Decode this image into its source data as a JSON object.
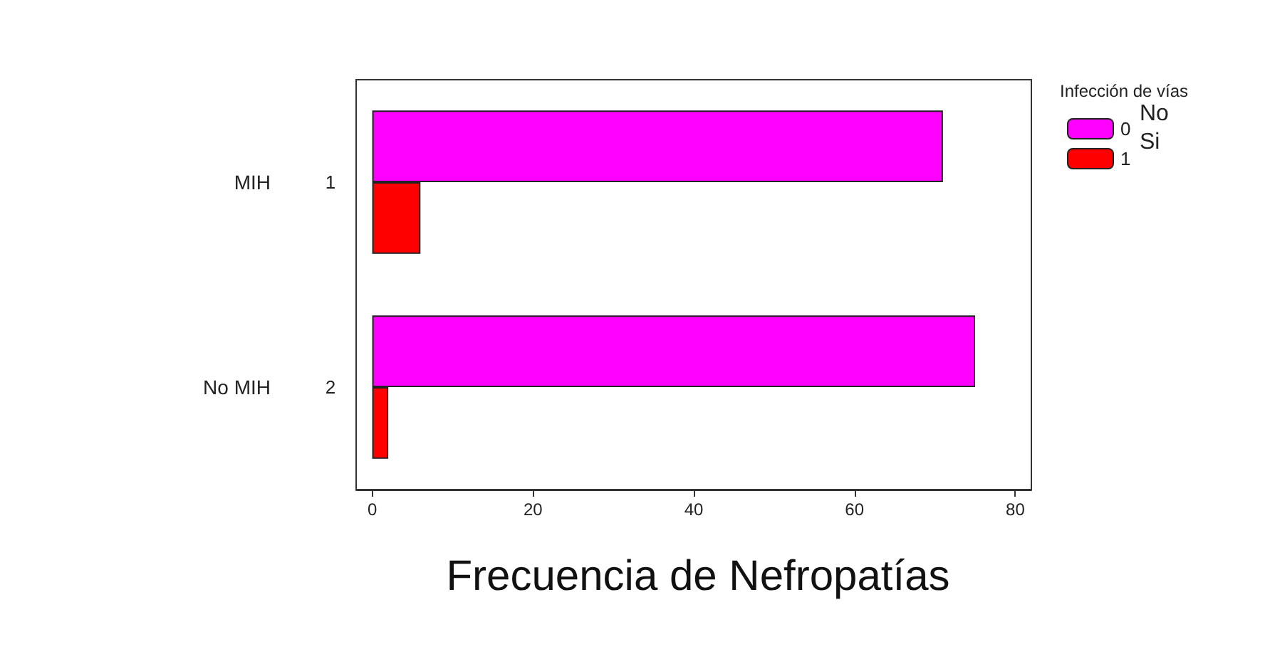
{
  "chart_data": {
    "type": "bar",
    "orientation": "horizontal",
    "title": "Frecuencia de Nefropatías",
    "legend_title": "Infección de vías",
    "categories": [
      "MIH",
      "No MIH"
    ],
    "series": [
      {
        "name": "0",
        "color": "#ff00ff",
        "values": [
          71,
          75
        ]
      },
      {
        "name": "1",
        "color": "#ff0000",
        "values": [
          6,
          2
        ]
      }
    ],
    "xlim": [
      -2,
      82
    ],
    "xticks": [
      0,
      20,
      40,
      60,
      80
    ],
    "grid": false,
    "legend": "top right",
    "annotations": [
      "1",
      "2",
      "No",
      "Si"
    ]
  }
}
